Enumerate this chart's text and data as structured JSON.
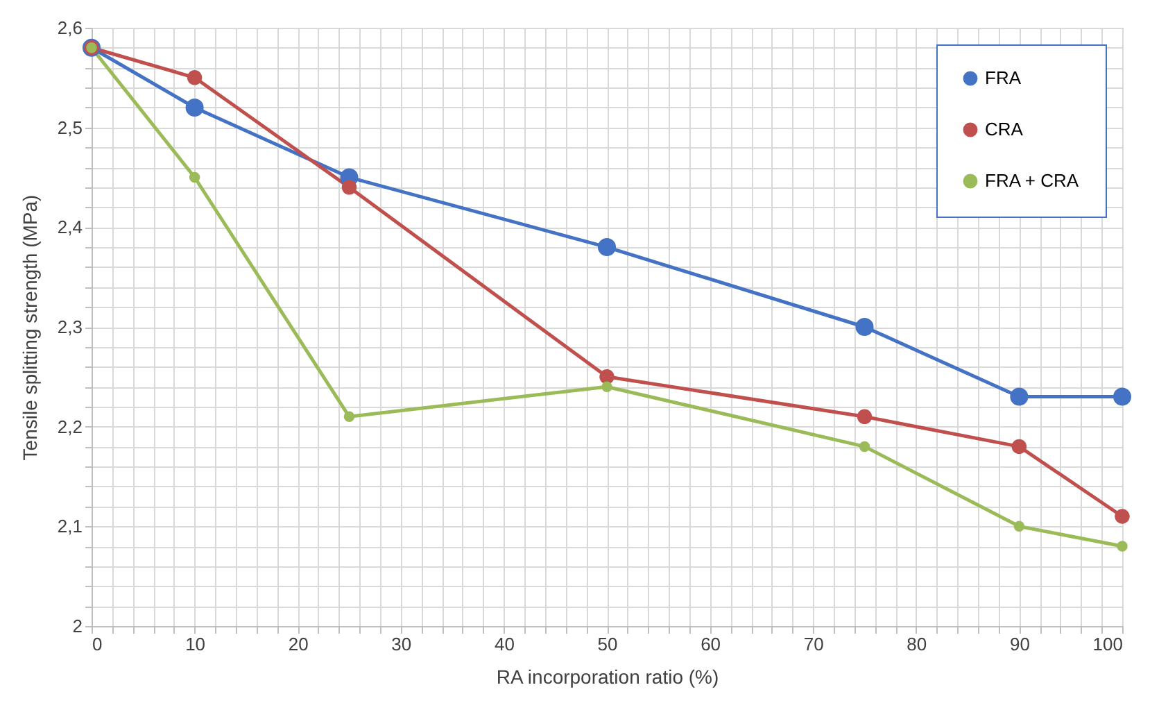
{
  "chart_data": {
    "type": "line",
    "xlabel": "RA incorporation ratio (%)",
    "ylabel": "Tensile splitting strength (MPa)",
    "x": [
      0,
      10,
      25,
      50,
      75,
      90,
      100
    ],
    "series": [
      {
        "name": "FRA",
        "color": "#4472c4",
        "values": [
          2.58,
          2.52,
          2.45,
          2.38,
          2.3,
          2.23,
          2.23
        ]
      },
      {
        "name": "CRA",
        "color": "#c0504d",
        "values": [
          2.58,
          2.55,
          2.44,
          2.25,
          2.21,
          2.18,
          2.11
        ]
      },
      {
        "name": "FRA + CRA",
        "color": "#9bbb59",
        "values": [
          2.58,
          2.45,
          2.21,
          2.24,
          2.18,
          2.1,
          2.08
        ]
      }
    ],
    "xlim": [
      0,
      100
    ],
    "xticks": [
      0,
      {
        "value": 2,
        "label": null
      },
      {
        "value": 4,
        "label": null
      },
      {
        "value": 6,
        "label": null
      },
      {
        "value": 8,
        "label": null
      },
      10,
      {
        "value": 12,
        "label": null
      },
      {
        "value": 14,
        "label": null
      },
      {
        "value": 16,
        "label": null
      },
      {
        "value": 18,
        "label": null
      },
      20,
      {
        "value": 22,
        "label": null
      },
      {
        "value": 24,
        "label": null
      },
      {
        "value": 26,
        "label": null
      },
      {
        "value": 28,
        "label": null
      },
      30,
      {
        "value": 32,
        "label": null
      },
      {
        "value": 34,
        "label": null
      },
      {
        "value": 36,
        "label": null
      },
      {
        "value": 38,
        "label": null
      },
      40,
      {
        "value": 42,
        "label": null
      },
      {
        "value": 44,
        "label": null
      },
      {
        "value": 46,
        "label": null
      },
      {
        "value": 48,
        "label": null
      },
      50,
      {
        "value": 52,
        "label": null
      },
      {
        "value": 54,
        "label": null
      },
      {
        "value": 56,
        "label": null
      },
      {
        "value": 58,
        "label": null
      },
      60,
      {
        "value": 62,
        "label": null
      },
      {
        "value": 64,
        "label": null
      },
      {
        "value": 66,
        "label": null
      },
      {
        "value": 68,
        "label": null
      },
      70,
      {
        "value": 72,
        "label": null
      },
      {
        "value": 74,
        "label": null
      },
      {
        "value": 76,
        "label": null
      },
      {
        "value": 78,
        "label": null
      },
      80,
      {
        "value": 82,
        "label": null
      },
      {
        "value": 84,
        "label": null
      },
      {
        "value": 86,
        "label": null
      },
      {
        "value": 88,
        "label": null
      },
      90,
      {
        "value": 92,
        "label": null
      },
      {
        "value": 94,
        "label": null
      },
      {
        "value": 96,
        "label": null
      },
      {
        "value": 98,
        "label": null
      },
      100
    ],
    "ylim": [
      2,
      2.6
    ],
    "yticks": [
      2,
      {
        "value": 2.02,
        "label": null
      },
      {
        "value": 2.04,
        "label": null
      },
      {
        "value": 2.06,
        "label": null
      },
      {
        "value": 2.08,
        "label": null
      },
      {
        "value": 2.1,
        "label": "2,1"
      },
      {
        "value": 2.12,
        "label": null
      },
      {
        "value": 2.14,
        "label": null
      },
      {
        "value": 2.16,
        "label": null
      },
      {
        "value": 2.18,
        "label": null
      },
      {
        "value": 2.2,
        "label": "2,2"
      },
      {
        "value": 2.22,
        "label": null
      },
      {
        "value": 2.24,
        "label": null
      },
      {
        "value": 2.26,
        "label": null
      },
      {
        "value": 2.28,
        "label": null
      },
      {
        "value": 2.3,
        "label": "2,3"
      },
      {
        "value": 2.32,
        "label": null
      },
      {
        "value": 2.34,
        "label": null
      },
      {
        "value": 2.36,
        "label": null
      },
      {
        "value": 2.38,
        "label": null
      },
      {
        "value": 2.4,
        "label": "2,4"
      },
      {
        "value": 2.42,
        "label": null
      },
      {
        "value": 2.44,
        "label": null
      },
      {
        "value": 2.46,
        "label": null
      },
      {
        "value": 2.48,
        "label": null
      },
      {
        "value": 2.5,
        "label": "2,5"
      },
      {
        "value": 2.52,
        "label": null
      },
      {
        "value": 2.54,
        "label": null
      },
      {
        "value": 2.56,
        "label": null
      },
      {
        "value": 2.58,
        "label": null
      },
      {
        "value": 2.6,
        "label": "2,6"
      }
    ],
    "grid": true,
    "legend": "top right",
    "marker": "circle",
    "line_style": "solid"
  }
}
